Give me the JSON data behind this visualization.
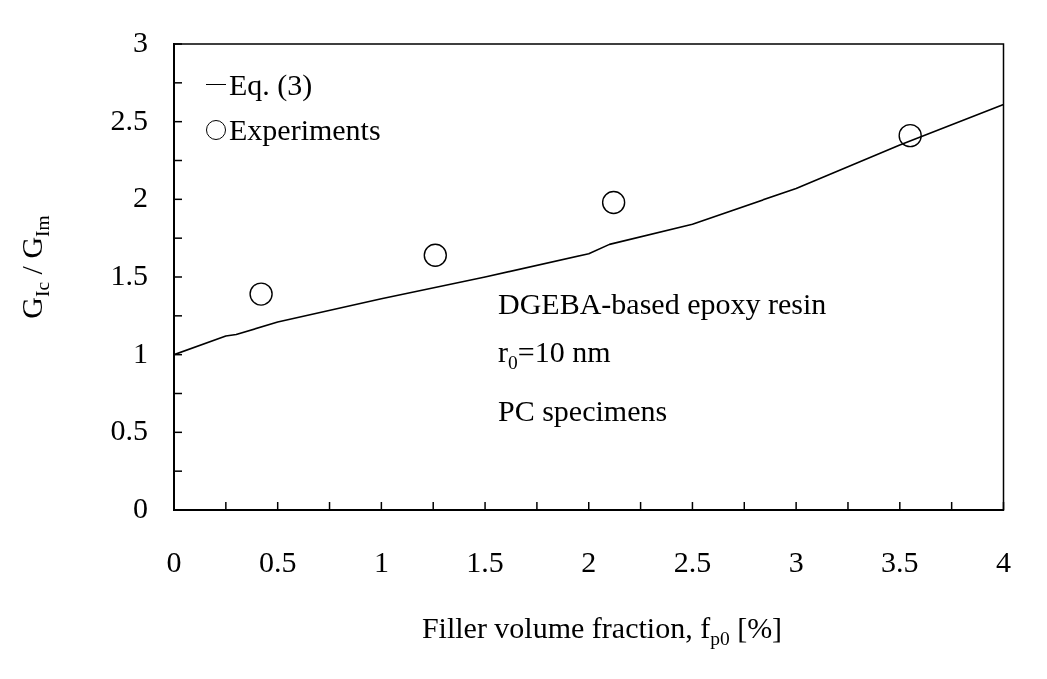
{
  "chart_data": {
    "type": "scatter",
    "xlabel": "Filler volume fraction, f$_{p0}$ [%]",
    "ylabel": "G$_{Ic}$ / G$_{Im}$",
    "xlim": [
      0,
      4
    ],
    "ylim": [
      0,
      3
    ],
    "xticks": [
      0,
      {
        "value": 0.25,
        "label": null
      },
      0.5,
      {
        "value": 0.75,
        "label": null
      },
      1,
      {
        "value": 1.25,
        "label": null
      },
      1.5,
      {
        "value": 1.75,
        "label": null
      },
      2,
      {
        "value": 2.25,
        "label": null
      },
      2.5,
      {
        "value": 2.75,
        "label": null
      },
      3,
      {
        "value": 3.25,
        "label": null
      },
      3.5,
      {
        "value": 3.75,
        "label": null
      },
      4
    ],
    "yticks": [
      0,
      {
        "value": 0.25,
        "label": null
      },
      0.5,
      {
        "value": 0.75,
        "label": null
      },
      1,
      {
        "value": 1.25,
        "label": null
      },
      1.5,
      {
        "value": 1.75,
        "label": null
      },
      2,
      {
        "value": 2.25,
        "label": null
      },
      2.5,
      {
        "value": 2.75,
        "label": null
      },
      3
    ],
    "grid": false,
    "legend": "top left",
    "series": [
      {
        "name": "Eq. (3)",
        "type": "line",
        "color": "#000000",
        "marker": "none",
        "line_style": "solid",
        "x": [
          0,
          0.25,
          0.3,
          0.5,
          1,
          1.5,
          2,
          2.1,
          2.5,
          3,
          3.5,
          3.75,
          4
        ],
        "values": [
          1.0,
          1.12,
          1.13,
          1.21,
          1.36,
          1.5,
          1.65,
          1.71,
          1.84,
          2.07,
          2.35,
          2.48,
          2.61
        ]
      },
      {
        "name": "Experiments",
        "color": "#000000",
        "marker": "circle",
        "x": [
          0.42,
          1.26,
          2.12,
          3.55
        ],
        "values": [
          1.39,
          1.64,
          1.98,
          2.41
        ]
      }
    ],
    "annotations": [
      "DGEBA-based epoxy resin",
      "r$_{0}$=10 nm",
      "PC specimens"
    ]
  }
}
